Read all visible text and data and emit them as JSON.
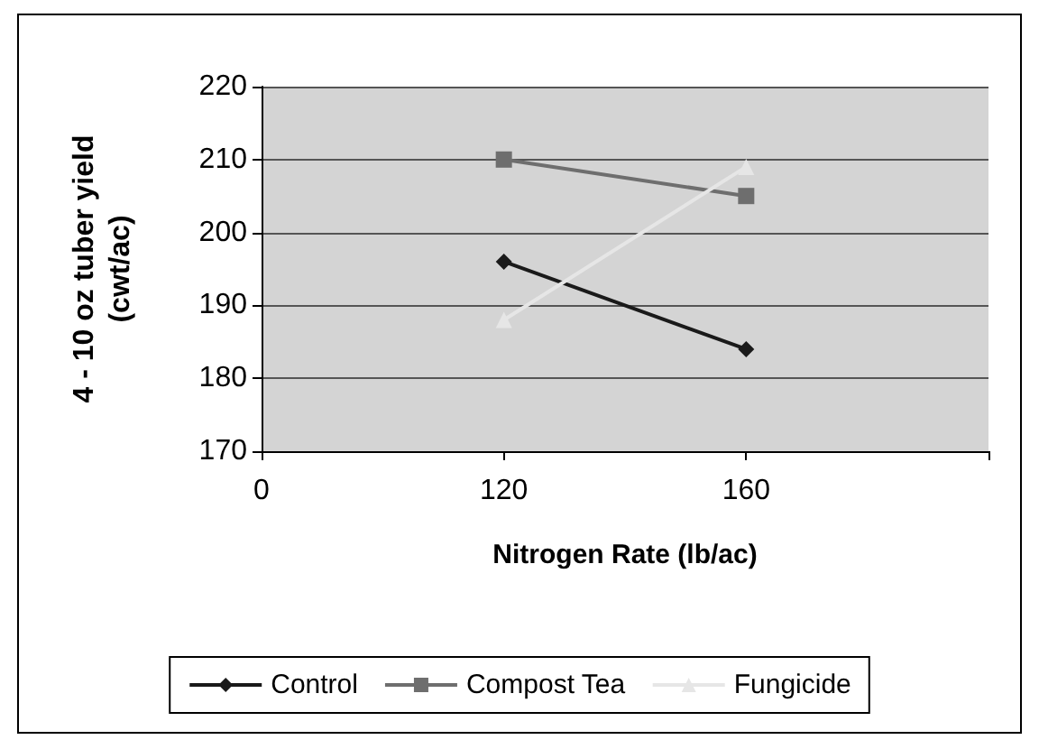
{
  "chart_data": {
    "type": "line",
    "xlabel": "Nitrogen Rate (lb/ac)",
    "ylabel": "4 - 10 oz tuber yield\n(cwt/ac)",
    "categories": [
      "0",
      "120",
      "160",
      null
    ],
    "series": [
      {
        "name": "Control",
        "color": "#1a1a1a",
        "marker": "diamond",
        "values": [
          null,
          196,
          184,
          null
        ]
      },
      {
        "name": "Compost Tea",
        "color": "#6e6e6e",
        "marker": "square",
        "values": [
          null,
          210,
          205,
          null
        ]
      },
      {
        "name": "Fungicide",
        "color": "#e6e6e6",
        "marker": "triangle",
        "values": [
          null,
          188,
          209,
          null
        ]
      }
    ],
    "ylim": [
      170,
      220
    ],
    "yticks": [
      170,
      180,
      190,
      200,
      210,
      220
    ],
    "grid": "y",
    "legend": "bottom"
  }
}
